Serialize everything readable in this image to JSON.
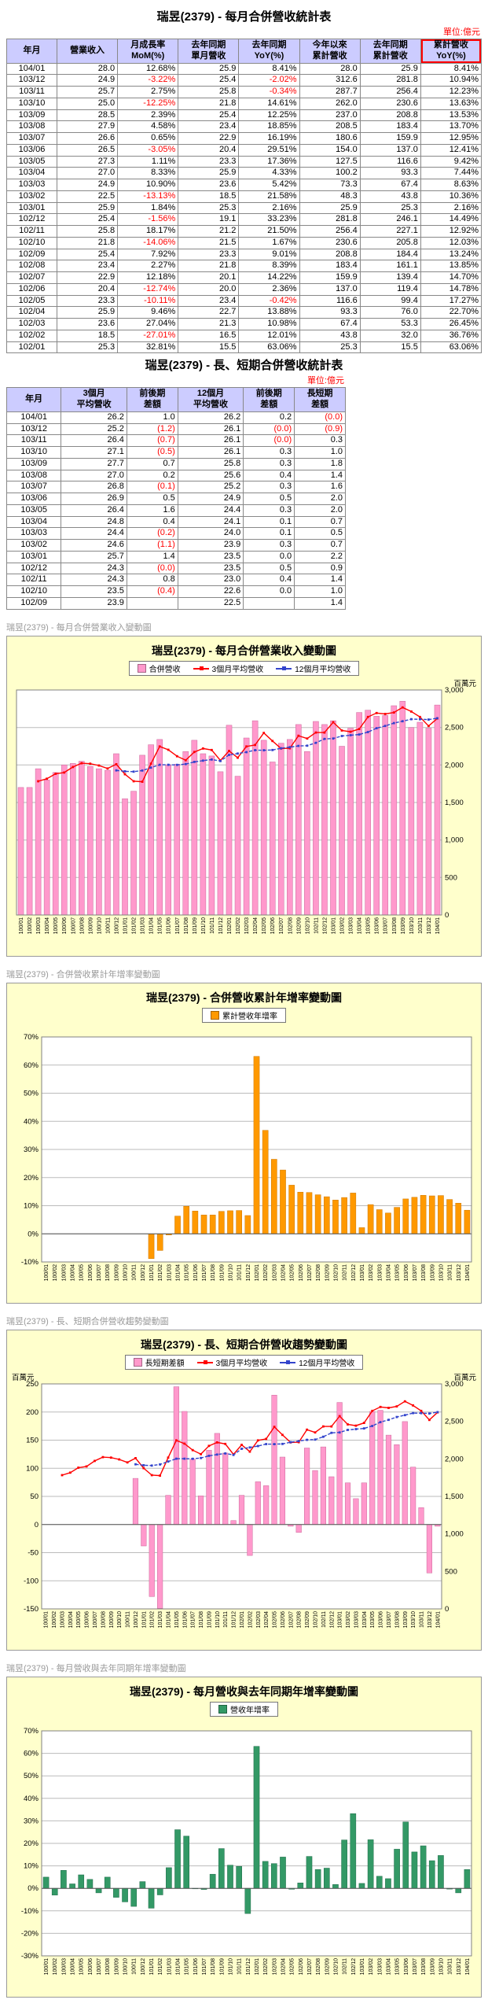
{
  "table1": {
    "title": "瑞昱(2379)  - 每月合併營收統計表",
    "unit": "單位:億元",
    "headers": [
      "年月",
      "營業收入",
      "月成長率\nMoM(%)",
      "去年同期\n單月營收",
      "去年同期\nYoY(%)",
      "今年以來\n累計營收",
      "去年同期\n累計營收",
      "累計營收\nYoY(%)"
    ],
    "rows": [
      [
        "104/01",
        "28.0",
        "12.68%",
        "25.9",
        "8.41%",
        "28.0",
        "25.9",
        "8.41%"
      ],
      [
        "103/12",
        "24.9",
        "-3.22%",
        "25.4",
        "-2.02%",
        "312.6",
        "281.8",
        "10.94%"
      ],
      [
        "103/11",
        "25.7",
        "2.75%",
        "25.8",
        "-0.34%",
        "287.7",
        "256.4",
        "12.23%"
      ],
      [
        "103/10",
        "25.0",
        "-12.25%",
        "21.8",
        "14.61%",
        "262.0",
        "230.6",
        "13.63%"
      ],
      [
        "103/09",
        "28.5",
        "2.39%",
        "25.4",
        "12.25%",
        "237.0",
        "208.8",
        "13.53%"
      ],
      [
        "103/08",
        "27.9",
        "4.58%",
        "23.4",
        "18.85%",
        "208.5",
        "183.4",
        "13.70%"
      ],
      [
        "103/07",
        "26.6",
        "0.65%",
        "22.9",
        "16.19%",
        "180.6",
        "159.9",
        "12.95%"
      ],
      [
        "103/06",
        "26.5",
        "-3.05%",
        "20.4",
        "29.51%",
        "154.0",
        "137.0",
        "12.41%"
      ],
      [
        "103/05",
        "27.3",
        "1.11%",
        "23.3",
        "17.36%",
        "127.5",
        "116.6",
        "9.42%"
      ],
      [
        "103/04",
        "27.0",
        "8.33%",
        "25.9",
        "4.33%",
        "100.2",
        "93.3",
        "7.44%"
      ],
      [
        "103/03",
        "24.9",
        "10.90%",
        "23.6",
        "5.42%",
        "73.3",
        "67.4",
        "8.63%"
      ],
      [
        "103/02",
        "22.5",
        "-13.13%",
        "18.5",
        "21.58%",
        "48.3",
        "43.8",
        "10.36%"
      ],
      [
        "103/01",
        "25.9",
        "1.84%",
        "25.3",
        "2.16%",
        "25.9",
        "25.3",
        "2.16%"
      ],
      [
        "102/12",
        "25.4",
        "-1.56%",
        "19.1",
        "33.23%",
        "281.8",
        "246.1",
        "14.49%"
      ],
      [
        "102/11",
        "25.8",
        "18.17%",
        "21.2",
        "21.50%",
        "256.4",
        "227.1",
        "12.92%"
      ],
      [
        "102/10",
        "21.8",
        "-14.06%",
        "21.5",
        "1.67%",
        "230.6",
        "205.8",
        "12.03%"
      ],
      [
        "102/09",
        "25.4",
        "7.92%",
        "23.3",
        "9.01%",
        "208.8",
        "184.4",
        "13.24%"
      ],
      [
        "102/08",
        "23.4",
        "2.27%",
        "21.8",
        "8.39%",
        "183.4",
        "161.1",
        "13.85%"
      ],
      [
        "102/07",
        "22.9",
        "12.18%",
        "20.1",
        "14.22%",
        "159.9",
        "139.4",
        "14.70%"
      ],
      [
        "102/06",
        "20.4",
        "-12.74%",
        "20.0",
        "2.36%",
        "137.0",
        "119.4",
        "14.78%"
      ],
      [
        "102/05",
        "23.3",
        "-10.11%",
        "23.4",
        "-0.42%",
        "116.6",
        "99.4",
        "17.27%"
      ],
      [
        "102/04",
        "25.9",
        "9.46%",
        "22.7",
        "13.88%",
        "93.3",
        "76.0",
        "22.70%"
      ],
      [
        "102/03",
        "23.6",
        "27.04%",
        "21.3",
        "10.98%",
        "67.4",
        "53.3",
        "26.45%"
      ],
      [
        "102/02",
        "18.5",
        "-27.01%",
        "16.5",
        "12.01%",
        "43.8",
        "32.0",
        "36.76%"
      ],
      [
        "102/01",
        "25.3",
        "32.81%",
        "15.5",
        "63.06%",
        "25.3",
        "15.5",
        "63.06%"
      ]
    ]
  },
  "table2": {
    "title": "瑞昱(2379)  - 長、短期合併營收統計表",
    "unit": "單位:億元",
    "headers": [
      "年月",
      "3個月\n平均營收",
      "前後期\n差額",
      "12個月\n平均營收",
      "前後期\n差額",
      "長短期\n差額"
    ],
    "rows": [
      [
        "104/01",
        "26.2",
        "1.0",
        "26.2",
        "0.2",
        "(0.0)"
      ],
      [
        "103/12",
        "25.2",
        "(1.2)",
        "26.1",
        "(0.0)",
        "(0.9)"
      ],
      [
        "103/11",
        "26.4",
        "(0.7)",
        "26.1",
        "(0.0)",
        "0.3"
      ],
      [
        "103/10",
        "27.1",
        "(0.5)",
        "26.1",
        "0.3",
        "1.0"
      ],
      [
        "103/09",
        "27.7",
        "0.7",
        "25.8",
        "0.3",
        "1.8"
      ],
      [
        "103/08",
        "27.0",
        "0.2",
        "25.6",
        "0.4",
        "1.4"
      ],
      [
        "103/07",
        "26.8",
        "(0.1)",
        "25.2",
        "0.3",
        "1.6"
      ],
      [
        "103/06",
        "26.9",
        "0.5",
        "24.9",
        "0.5",
        "2.0"
      ],
      [
        "103/05",
        "26.4",
        "1.6",
        "24.4",
        "0.3",
        "2.0"
      ],
      [
        "103/04",
        "24.8",
        "0.4",
        "24.1",
        "0.1",
        "0.7"
      ],
      [
        "103/03",
        "24.4",
        "(0.2)",
        "24.0",
        "0.1",
        "0.5"
      ],
      [
        "103/02",
        "24.6",
        "(1.1)",
        "23.9",
        "0.3",
        "0.7"
      ],
      [
        "103/01",
        "25.7",
        "1.4",
        "23.5",
        "0.0",
        "2.2"
      ],
      [
        "102/12",
        "24.3",
        "(0.0)",
        "23.5",
        "0.5",
        "0.9"
      ],
      [
        "102/11",
        "24.3",
        "0.8",
        "23.0",
        "0.4",
        "1.4"
      ],
      [
        "102/10",
        "23.5",
        "(0.4)",
        "22.6",
        "0.0",
        "1.0"
      ],
      [
        "102/09",
        "23.9",
        "",
        "22.5",
        "",
        "1.4"
      ]
    ]
  },
  "chart_data": {
    "months": [
      "100/01",
      "100/02",
      "100/03",
      "100/04",
      "100/05",
      "100/06",
      "100/07",
      "100/08",
      "100/09",
      "100/10",
      "100/11",
      "100/12",
      "101/01",
      "101/02",
      "101/03",
      "101/04",
      "101/05",
      "101/06",
      "101/07",
      "101/08",
      "101/09",
      "101/10",
      "101/11",
      "101/12",
      "102/01",
      "102/02",
      "102/03",
      "102/04",
      "102/05",
      "102/06",
      "102/07",
      "102/08",
      "102/09",
      "102/10",
      "102/11",
      "102/12",
      "103/01",
      "103/02",
      "103/03",
      "103/04",
      "103/05",
      "103/06",
      "103/07",
      "103/08",
      "103/09",
      "103/10",
      "103/11",
      "103/12",
      "104/01"
    ],
    "series": {
      "revenue": [
        1700,
        1700,
        1950,
        1800,
        1900,
        2000,
        2020,
        2050,
        1980,
        1950,
        1930,
        2150,
        1550,
        1650,
        2130,
        2270,
        2340,
        2000,
        2010,
        2180,
        2330,
        2150,
        2120,
        1910,
        2530,
        1850,
        2360,
        2590,
        2330,
        2040,
        2290,
        2340,
        2540,
        2180,
        2580,
        2540,
        2590,
        2250,
        2490,
        2700,
        2730,
        2650,
        2660,
        2790,
        2850,
        2500,
        2570,
        2490,
        2800
      ],
      "ma3": [
        null,
        null,
        1783,
        1817,
        1883,
        1900,
        1973,
        2023,
        2017,
        1993,
        1953,
        2010,
        1877,
        1783,
        1777,
        2017,
        2247,
        2203,
        2117,
        2063,
        2173,
        2220,
        2200,
        2060,
        2187,
        2097,
        2247,
        2267,
        2427,
        2320,
        2220,
        2223,
        2390,
        2353,
        2433,
        2433,
        2570,
        2460,
        2443,
        2480,
        2640,
        2693,
        2680,
        2700,
        2767,
        2713,
        2640,
        2520,
        2620
      ],
      "ma12": [
        null,
        null,
        null,
        null,
        null,
        null,
        null,
        null,
        null,
        null,
        null,
        1928,
        1915,
        1911,
        1926,
        1965,
        2002,
        2002,
        2001,
        2012,
        2041,
        2058,
        2073,
        2053,
        2135,
        2152,
        2171,
        2198,
        2197,
        2200,
        2223,
        2237,
        2254,
        2257,
        2295,
        2348,
        2353,
        2386,
        2397,
        2406,
        2439,
        2490,
        2521,
        2558,
        2584,
        2611,
        2610,
        2606,
        2623
      ],
      "long_short_diff": [
        null,
        null,
        null,
        null,
        null,
        null,
        null,
        null,
        null,
        null,
        null,
        82,
        -38,
        -128,
        -149,
        52,
        245,
        201,
        116,
        51,
        132,
        162,
        127,
        7,
        52,
        -55,
        76,
        69,
        230,
        120,
        -3,
        -14,
        136,
        96,
        138,
        85,
        217,
        74,
        46,
        74,
        201,
        203,
        159,
        142,
        183,
        102,
        30,
        -86,
        -3
      ],
      "cum_yoy": [
        null,
        null,
        null,
        null,
        null,
        null,
        null,
        null,
        null,
        null,
        null,
        null,
        -8.8,
        -5.9,
        -0.4,
        6.3,
        9.8,
        8.1,
        6.7,
        6.7,
        8.0,
        8.2,
        8.3,
        6.5,
        63.1,
        36.8,
        26.5,
        22.7,
        17.3,
        14.8,
        14.7,
        13.9,
        13.2,
        12.0,
        12.9,
        14.5,
        2.2,
        10.4,
        8.6,
        7.4,
        9.4,
        12.4,
        13.0,
        13.7,
        13.5,
        13.6,
        12.2,
        10.9,
        8.4
      ],
      "mon_yoy": [
        5.0,
        -3.0,
        8.0,
        2.0,
        6.0,
        4.0,
        -2.0,
        5.0,
        -4.0,
        -6.0,
        -8.0,
        3.0,
        -8.8,
        -2.9,
        9.2,
        26.1,
        23.2,
        0.0,
        -0.5,
        6.3,
        17.7,
        10.3,
        9.8,
        -11.2,
        63.1,
        12.0,
        11.0,
        13.9,
        -0.4,
        2.4,
        14.2,
        8.4,
        9.0,
        1.7,
        21.5,
        33.2,
        2.2,
        21.6,
        5.4,
        4.3,
        17.4,
        29.5,
        16.2,
        18.9,
        12.3,
        14.6,
        -0.3,
        -2.0,
        8.4
      ]
    },
    "charts": [
      {
        "type": "bar",
        "caption": "瑞昱(2379)  -  每月合併營業收入變動圖",
        "title": "瑞昱(2379)  -  每月合併營業收入變動圖",
        "unit_right": "百萬元",
        "legend": [
          {
            "type": "bar",
            "label": "合併營收",
            "color": "#FF99CC"
          },
          {
            "type": "line",
            "label": "3個月平均營收",
            "color": "#FF0000"
          },
          {
            "type": "line",
            "label": "12個月平均營收",
            "color": "#3344CC"
          }
        ],
        "axes": {
          "left": null,
          "right": {
            "min": 0,
            "max": 3000,
            "step": 500,
            "thousands": true
          },
          "grid": "right"
        },
        "bars": {
          "series": "revenue",
          "axis": "right",
          "color": "#FF99CC",
          "edge": "#CC6699"
        },
        "lines": [
          {
            "series": "ma3",
            "axis": "right",
            "color": "#FF0000"
          },
          {
            "series": "ma12",
            "axis": "right",
            "color": "#3344CC",
            "dash": "4,2"
          }
        ]
      },
      {
        "type": "bar",
        "caption": "瑞昱(2379)  -  合併營收累計年增率變動圖",
        "title": "瑞昱(2379)  -  合併營收累計年增率變動圖",
        "legend": [
          {
            "type": "bar",
            "label": "累計營收年增率",
            "color": "#FF9900"
          }
        ],
        "axes": {
          "left": {
            "min": -10,
            "max": 70,
            "step": 10,
            "suffix": "%"
          },
          "right": null,
          "grid": "left"
        },
        "bars": {
          "series": "cum_yoy",
          "axis": "left",
          "color": "#FF9900",
          "edge": "#CC7700"
        }
      },
      {
        "type": "bar",
        "caption": "瑞昱(2379)  -  長、短期合併營收趨勢變動圖",
        "title": "瑞昱(2379)  -  長、短期合併營收趨勢變動圖",
        "unit_left": "百萬元",
        "unit_right": "百萬元",
        "legend": [
          {
            "type": "bar",
            "label": "長短期差額",
            "color": "#FF99CC"
          },
          {
            "type": "line",
            "label": "3個月平均營收",
            "color": "#FF0000"
          },
          {
            "type": "line",
            "label": "12個月平均營收",
            "color": "#3344CC"
          }
        ],
        "axes": {
          "left": {
            "min": -150,
            "max": 250,
            "step": 50
          },
          "right": {
            "min": 0,
            "max": 3000,
            "step": 500,
            "thousands": true
          },
          "grid": "left"
        },
        "bars": {
          "series": "long_short_diff",
          "axis": "left",
          "color": "#FF99CC",
          "edge": "#CC6699"
        },
        "lines": [
          {
            "series": "ma3",
            "axis": "right",
            "color": "#FF0000"
          },
          {
            "series": "ma12",
            "axis": "right",
            "color": "#3344CC",
            "dash": "4,2"
          }
        ]
      },
      {
        "type": "bar",
        "caption": "瑞昱(2379)  -  每月營收與去年同期年增率變動圖",
        "title": "瑞昱(2379)  -  每月營收與去年同期年增率變動圖",
        "legend": [
          {
            "type": "bar",
            "label": "營收年增率",
            "color": "#339966"
          }
        ],
        "axes": {
          "left": {
            "min": -30,
            "max": 70,
            "step": 10,
            "suffix": "%"
          },
          "right": null,
          "grid": "left"
        },
        "bars": {
          "series": "mon_yoy",
          "axis": "left",
          "color": "#339966",
          "edge": "#1F6B49"
        }
      }
    ]
  }
}
